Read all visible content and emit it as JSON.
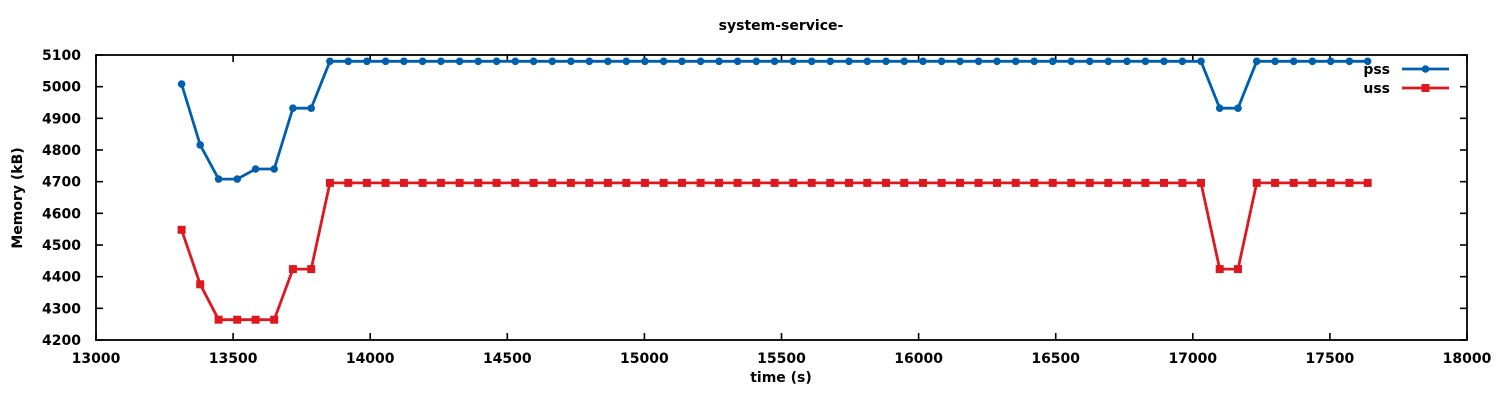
{
  "chart_data": {
    "type": "line",
    "title": "system-service-",
    "xlabel": "time (s)",
    "ylabel": "Memory (kB)",
    "xlim": [
      13000,
      18000
    ],
    "ylim": [
      4200,
      5100
    ],
    "xticks": [
      13000,
      13500,
      14000,
      14500,
      15000,
      15500,
      16000,
      16500,
      17000,
      17500,
      18000
    ],
    "yticks": [
      4200,
      4300,
      4400,
      4500,
      4600,
      4700,
      4800,
      4900,
      5000,
      5100
    ],
    "grid": false,
    "legend_position": "top-right-inside",
    "background": "#ffffff",
    "x": [
      13312,
      13380,
      13447,
      13515,
      13582,
      13650,
      13718,
      13785,
      13853,
      13920,
      13988,
      14056,
      14123,
      14191,
      14258,
      14326,
      14394,
      14461,
      14529,
      14596,
      14664,
      14732,
      14799,
      14867,
      14934,
      15002,
      15070,
      15137,
      15205,
      15272,
      15340,
      15408,
      15475,
      15543,
      15610,
      15678,
      15746,
      15813,
      15881,
      15948,
      16016,
      16084,
      16151,
      16219,
      16286,
      16354,
      16422,
      16489,
      16557,
      16624,
      16692,
      16760,
      16827,
      16895,
      16962,
      17030,
      17098,
      17165,
      17233,
      17300,
      17368,
      17436,
      17503,
      17571,
      17638
    ],
    "series": [
      {
        "name": "pss",
        "color": "#0060ad",
        "marker": "circle",
        "values": [
          5008,
          4816,
          4708,
          4708,
          4740,
          4740,
          4932,
          4932,
          5080,
          5080,
          5080,
          5080,
          5080,
          5080,
          5080,
          5080,
          5080,
          5080,
          5080,
          5080,
          5080,
          5080,
          5080,
          5080,
          5080,
          5080,
          5080,
          5080,
          5080,
          5080,
          5080,
          5080,
          5080,
          5080,
          5080,
          5080,
          5080,
          5080,
          5080,
          5080,
          5080,
          5080,
          5080,
          5080,
          5080,
          5080,
          5080,
          5080,
          5080,
          5080,
          5080,
          5080,
          5080,
          5080,
          5080,
          5080,
          4932,
          4932,
          5080,
          5080,
          5080,
          5080,
          5080,
          5080,
          5080
        ]
      },
      {
        "name": "uss",
        "color": "#dd181f",
        "marker": "square",
        "values": [
          4548,
          4376,
          4264,
          4264,
          4264,
          4264,
          4424,
          4424,
          4696,
          4696,
          4696,
          4696,
          4696,
          4696,
          4696,
          4696,
          4696,
          4696,
          4696,
          4696,
          4696,
          4696,
          4696,
          4696,
          4696,
          4696,
          4696,
          4696,
          4696,
          4696,
          4696,
          4696,
          4696,
          4696,
          4696,
          4696,
          4696,
          4696,
          4696,
          4696,
          4696,
          4696,
          4696,
          4696,
          4696,
          4696,
          4696,
          4696,
          4696,
          4696,
          4696,
          4696,
          4696,
          4696,
          4696,
          4696,
          4424,
          4424,
          4696,
          4696,
          4696,
          4696,
          4696,
          4696,
          4696
        ]
      }
    ]
  }
}
